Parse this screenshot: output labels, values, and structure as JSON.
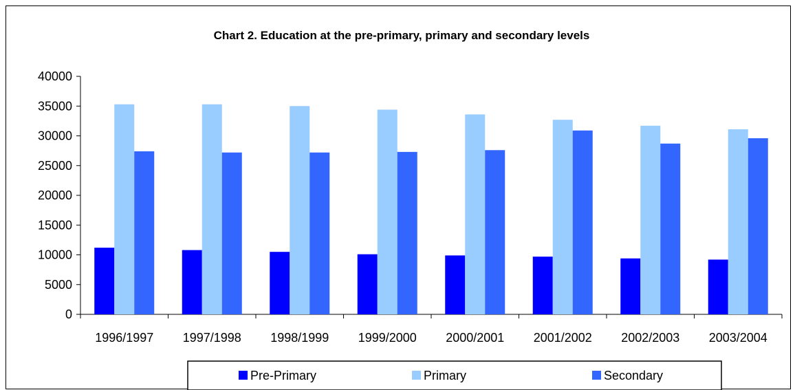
{
  "chart_data": {
    "type": "bar",
    "title": "Chart 2. Education at the pre-primary, primary and secondary levels",
    "xlabel": "",
    "ylabel": "",
    "categories": [
      "1996/1997",
      "1997/1998",
      "1998/1999",
      "1999/2000",
      "2000/2001",
      "2001/2002",
      "2002/2003",
      "2003/2004"
    ],
    "ylim": [
      0,
      40000
    ],
    "yticks": [
      0,
      5000,
      10000,
      15000,
      20000,
      25000,
      30000,
      35000,
      40000
    ],
    "grid": false,
    "legend_position": "bottom",
    "series": [
      {
        "name": "Pre-Primary",
        "color": "#0000FF",
        "values": [
          11200,
          10800,
          10500,
          10100,
          9900,
          9700,
          9400,
          9200
        ]
      },
      {
        "name": "Primary",
        "color": "#99CCFF",
        "values": [
          35300,
          35300,
          35000,
          34400,
          33600,
          32700,
          31700,
          31100
        ]
      },
      {
        "name": "Secondary",
        "color": "#3366FF",
        "values": [
          27400,
          27200,
          27200,
          27300,
          27600,
          30900,
          28700,
          29600
        ]
      }
    ]
  }
}
